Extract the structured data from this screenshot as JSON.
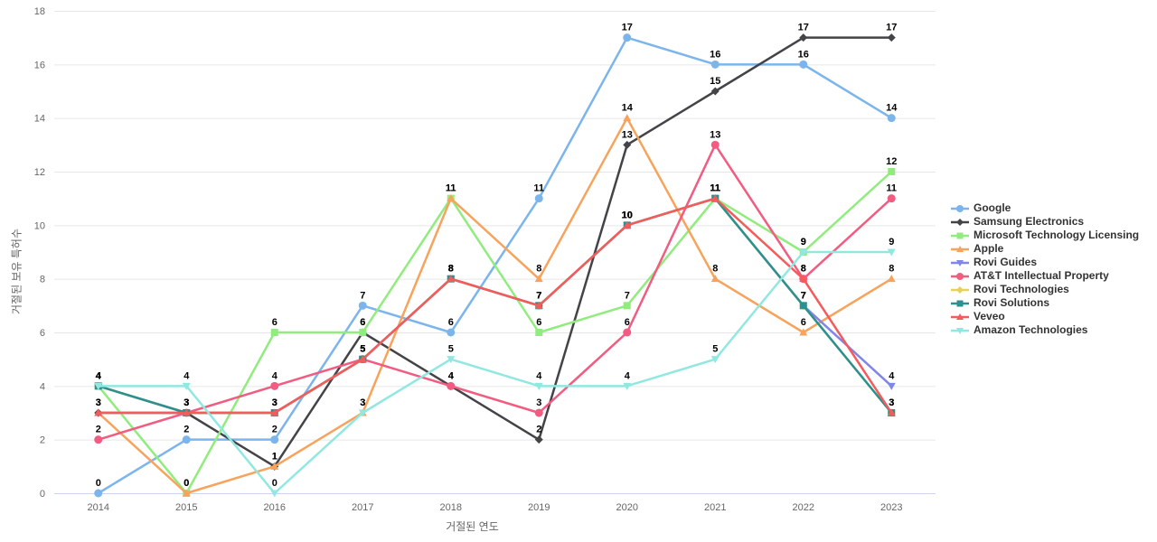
{
  "chart_data": {
    "type": "line",
    "title": "",
    "xlabel": "거절된 연도",
    "ylabel": "거절된 보유 특허수",
    "categories": [
      "2014",
      "2015",
      "2016",
      "2017",
      "2018",
      "2019",
      "2020",
      "2021",
      "2022",
      "2023"
    ],
    "ylim": [
      0,
      18
    ],
    "y_ticks": [
      0,
      2,
      4,
      6,
      8,
      10,
      12,
      14,
      16,
      18
    ],
    "grid": true,
    "legend_position": "right",
    "data_labels": true,
    "series": [
      {
        "name": "Google",
        "color": "#7cb5ec",
        "marker": "circle",
        "values": [
          0,
          2,
          2,
          7,
          6,
          11,
          17,
          16,
          16,
          14
        ]
      },
      {
        "name": "Samsung Electronics",
        "color": "#434348",
        "marker": "diamond",
        "values": [
          3,
          3,
          1,
          6,
          4,
          2,
          13,
          15,
          17,
          17
        ]
      },
      {
        "name": "Microsoft Technology Licensing",
        "color": "#90ed7d",
        "marker": "square",
        "values": [
          4,
          0,
          6,
          6,
          11,
          6,
          7,
          11,
          9,
          12
        ]
      },
      {
        "name": "Apple",
        "color": "#f7a35c",
        "marker": "triangle",
        "values": [
          3,
          0,
          1,
          3,
          11,
          8,
          14,
          8,
          6,
          8
        ]
      },
      {
        "name": "Rovi Guides",
        "color": "#8085e9",
        "marker": "triangle-down",
        "values": [
          4,
          3,
          3,
          5,
          8,
          7,
          10,
          11,
          7,
          4
        ]
      },
      {
        "name": "AT&T Intellectual Property",
        "color": "#f15c80",
        "marker": "circle",
        "values": [
          2,
          3,
          4,
          5,
          4,
          3,
          6,
          13,
          8,
          11
        ]
      },
      {
        "name": "Rovi Technologies",
        "color": "#e4d354",
        "marker": "diamond",
        "values": [
          4,
          3,
          3,
          5,
          8,
          7,
          10,
          11,
          7,
          3
        ]
      },
      {
        "name": "Rovi Solutions",
        "color": "#2b908f",
        "marker": "square",
        "values": [
          4,
          3,
          3,
          5,
          8,
          7,
          10,
          11,
          7,
          3
        ]
      },
      {
        "name": "Veveo",
        "color": "#f45b5b",
        "marker": "triangle",
        "values": [
          3,
          3,
          3,
          5,
          8,
          7,
          10,
          11,
          8,
          3
        ]
      },
      {
        "name": "Amazon Technologies",
        "color": "#91e8e1",
        "marker": "triangle-down",
        "values": [
          4,
          4,
          0,
          3,
          5,
          4,
          4,
          5,
          9,
          9
        ]
      }
    ],
    "style": {
      "grid_color": "#e6e6e6",
      "axis_line_color": "#ccd6eb",
      "tick_label_color": "#666666",
      "data_label_color": "#000000",
      "legend_text_color": "#333333",
      "background": "#ffffff"
    }
  }
}
